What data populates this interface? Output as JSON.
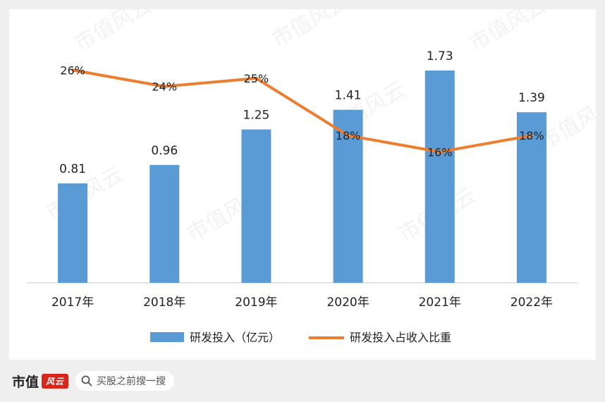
{
  "chart_data": {
    "type": "bar",
    "categories": [
      "2017年",
      "2018年",
      "2019年",
      "2020年",
      "2021年",
      "2022年"
    ],
    "series": [
      {
        "name": "研发投入（亿元）",
        "type": "bar",
        "axis": "left",
        "values": [
          0.81,
          0.96,
          1.25,
          1.41,
          1.73,
          1.39
        ],
        "data_labels": [
          "0.81",
          "0.96",
          "1.25",
          "1.41",
          "1.73",
          "1.39"
        ],
        "color": "#5b9bd5"
      },
      {
        "name": "研发投入占收入比重",
        "type": "line",
        "axis": "right",
        "values": [
          26,
          24,
          25,
          18,
          16,
          18
        ],
        "data_labels": [
          "26%",
          "24%",
          "25%",
          "18%",
          "16%",
          "18%"
        ],
        "color": "#ed7d31"
      }
    ],
    "ylim": [
      0,
      2.0
    ],
    "y2lim": [
      0,
      30
    ],
    "grid": false,
    "legend_position": "bottom"
  },
  "footer": {
    "brand": "市值",
    "brand_badge": "风云",
    "search_text": "买股之前搜一搜"
  },
  "watermark": {
    "text": "市值风云"
  }
}
